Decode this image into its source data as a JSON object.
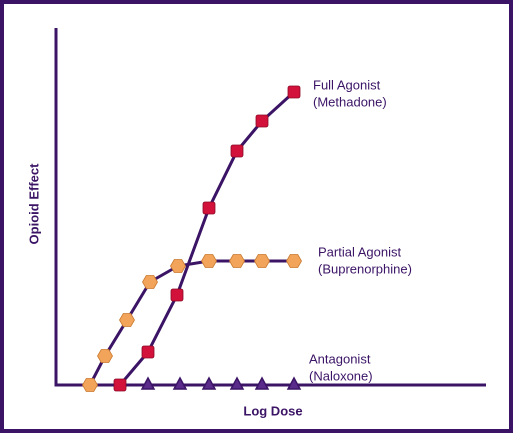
{
  "chart_data": {
    "type": "line",
    "xlabel": "Log Dose",
    "ylabel": "Opioid Effect",
    "xlim": [
      0,
      430
    ],
    "ylim": [
      0,
      357
    ],
    "axis_color": "#3b1466",
    "series": [
      {
        "name": "Full Agonist",
        "drug": "(Methadone)",
        "color": "#d3123c",
        "marker": "square",
        "show_line": true,
        "x": [
          64,
          92,
          121,
          153,
          181,
          206,
          238
        ],
        "values": [
          0,
          33,
          90,
          177,
          234,
          264,
          293
        ]
      },
      {
        "name": "Partial Agonist",
        "drug": "(Buprenorphine)",
        "color": "#f2a55a",
        "marker": "hexagon",
        "show_line": true,
        "x": [
          34,
          49,
          71,
          94,
          122,
          153,
          181,
          206,
          238
        ],
        "values": [
          0,
          29,
          65,
          103,
          119,
          124,
          124,
          124,
          124
        ]
      },
      {
        "name": "Antagonist",
        "drug": "(Naloxone)",
        "color": "#5b2b8c",
        "marker": "triangle",
        "show_line": false,
        "x": [
          92,
          124,
          153,
          181,
          206,
          238
        ],
        "values": [
          0,
          0,
          0,
          0,
          0,
          0
        ]
      }
    ]
  }
}
